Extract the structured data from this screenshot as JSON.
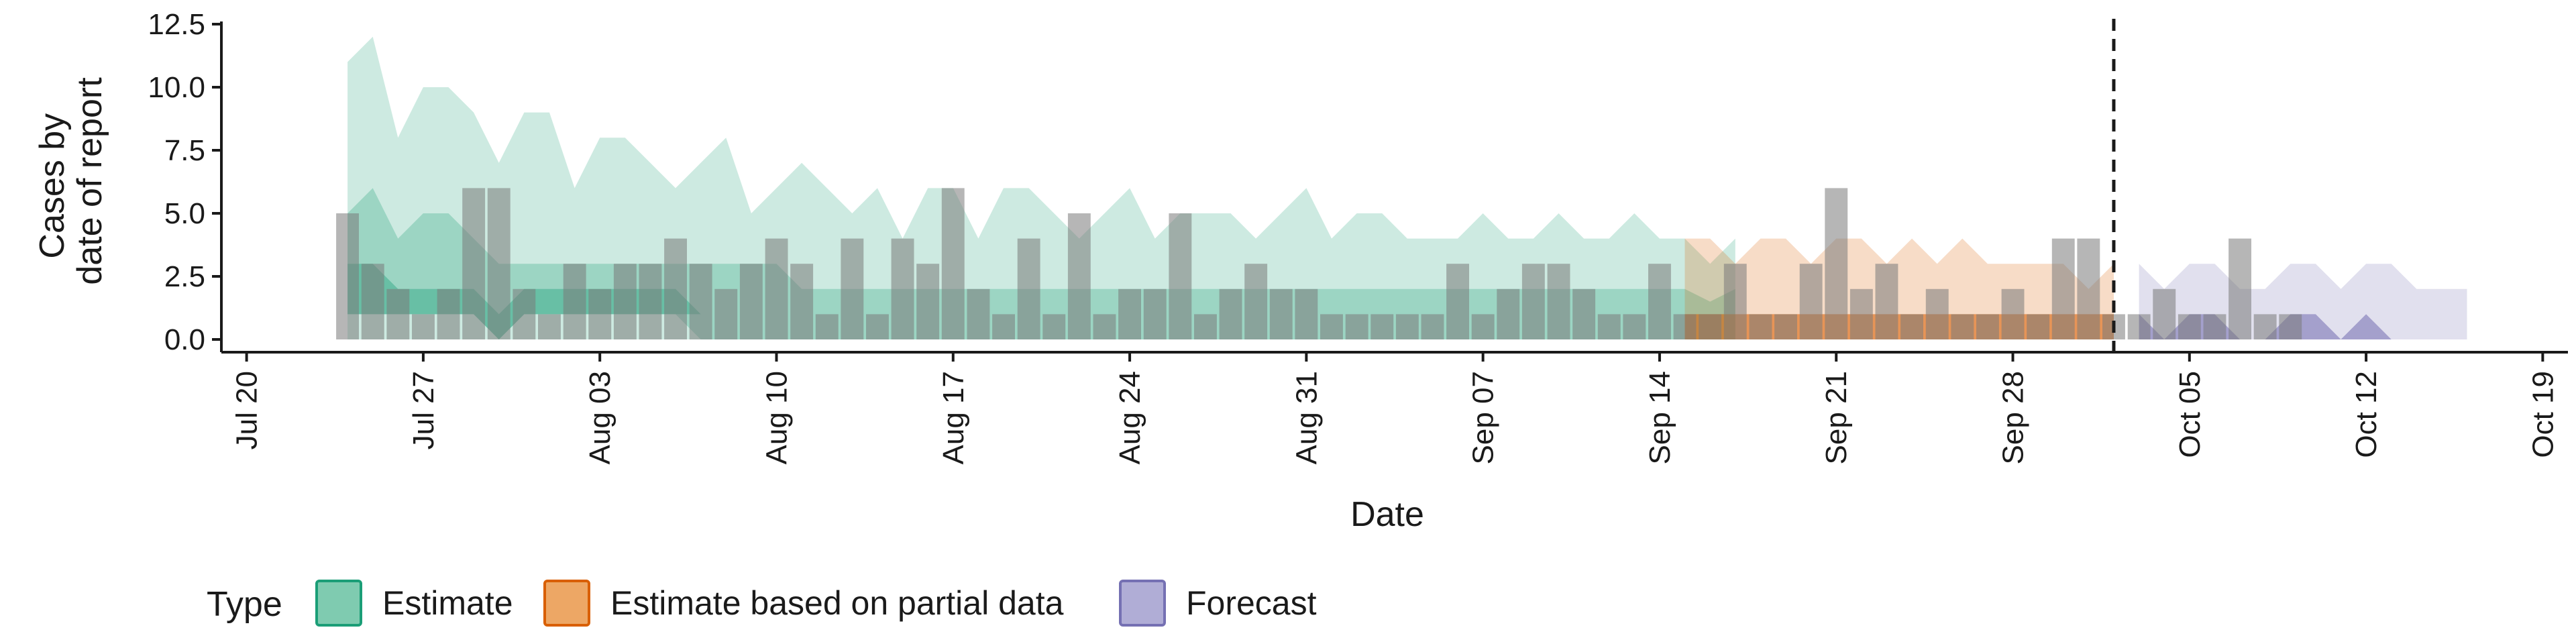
{
  "chart_data": {
    "type": "bar",
    "xlabel": "Date",
    "ylabel": "Cases by date of report",
    "ylabel_lines": [
      "Cases by",
      "date of report"
    ],
    "x_ticks": [
      "Jul 20",
      "Jul 27",
      "Aug 03",
      "Aug 10",
      "Aug 17",
      "Aug 24",
      "Aug 31",
      "Sep 07",
      "Sep 14",
      "Sep 21",
      "Sep 28",
      "Oct 05",
      "Oct 12",
      "Oct 19"
    ],
    "x_tick_dates": [
      "2020-07-20",
      "2020-07-27",
      "2020-08-03",
      "2020-08-10",
      "2020-08-17",
      "2020-08-24",
      "2020-08-31",
      "2020-09-07",
      "2020-09-14",
      "2020-09-21",
      "2020-09-28",
      "2020-10-05",
      "2020-10-12",
      "2020-10-19"
    ],
    "y_ticks": [
      "0.0",
      "2.5",
      "5.0",
      "7.5",
      "10.0",
      "12.5"
    ],
    "ylim": [
      0,
      12.5
    ],
    "xlim": [
      "2020-07-19",
      "2020-10-20"
    ],
    "forecast_line_date": "2020-10-02",
    "reported_cases": {
      "start_date": "2020-07-24",
      "values": [
        5,
        3,
        2,
        1,
        2,
        6,
        6,
        2,
        1,
        3,
        2,
        3,
        3,
        4,
        3,
        2,
        3,
        4,
        3,
        1,
        4,
        1,
        4,
        3,
        6,
        2,
        1,
        4,
        1,
        5,
        1,
        2,
        2,
        5,
        1,
        2,
        3,
        2,
        2,
        1,
        1,
        1,
        1,
        1,
        3,
        1,
        2,
        3,
        3,
        2,
        1,
        1,
        3,
        1,
        1,
        3,
        1,
        1,
        3,
        6,
        2,
        3,
        1,
        2,
        1,
        1,
        2,
        1,
        4,
        4,
        1,
        1,
        2,
        1,
        1,
        4,
        1,
        1
      ]
    },
    "bands": [
      {
        "name": "Estimate",
        "color": "#1b9e77",
        "start_date": "2020-07-24",
        "outer_upper": [
          11,
          12,
          8,
          10,
          10,
          9,
          7,
          9,
          9,
          6,
          8,
          8,
          7,
          6,
          7,
          8,
          5,
          6,
          7,
          6,
          5,
          6,
          4,
          6,
          6,
          4,
          6,
          6,
          5,
          4,
          5,
          6,
          4,
          5,
          5,
          5,
          4,
          5,
          6,
          4,
          5,
          5,
          4,
          4,
          4,
          5,
          4,
          4,
          5,
          4,
          4,
          5,
          4,
          4,
          3,
          4
        ],
        "outer_lower": [
          0,
          0,
          0,
          0,
          0,
          0,
          0,
          0,
          0,
          0,
          0,
          0,
          0,
          0,
          0,
          0,
          0,
          0,
          0,
          0,
          0,
          0,
          0,
          0,
          0,
          0,
          0,
          0,
          0,
          0,
          0,
          0,
          0,
          0,
          0,
          0,
          0,
          0,
          0,
          0,
          0,
          0,
          0,
          0,
          0,
          0,
          0,
          0,
          0,
          0,
          0,
          0,
          0,
          0,
          0,
          0
        ],
        "inner_upper": [
          5,
          6,
          4,
          5,
          5,
          4,
          3,
          3,
          3,
          3,
          3,
          3,
          3,
          3,
          3,
          3,
          3,
          3,
          2,
          2,
          2,
          2,
          2,
          2,
          2,
          2,
          2,
          2,
          2,
          2,
          2,
          2,
          2,
          2,
          2,
          2,
          2,
          2,
          2,
          2,
          2,
          2,
          2,
          2,
          2,
          2,
          2,
          2,
          2,
          2,
          2,
          2,
          2,
          2,
          1.5,
          2
        ],
        "inner_lower": [
          1,
          1,
          1,
          1,
          1,
          1,
          0,
          1,
          1,
          1,
          1,
          1,
          1,
          1,
          0,
          0,
          0,
          0,
          0,
          0,
          0,
          0,
          0,
          0,
          0,
          0,
          0,
          0,
          0,
          0,
          0,
          0,
          0,
          0,
          0,
          0,
          0,
          0,
          0,
          0,
          0,
          0,
          0,
          0,
          0,
          0,
          0,
          0,
          0,
          0,
          0,
          0,
          0,
          0,
          0,
          0
        ],
        "median_upper": [
          3,
          3,
          2,
          2,
          2,
          2,
          1,
          2,
          2,
          2,
          2,
          2,
          2,
          2,
          1,
          1,
          1,
          1,
          1,
          1,
          1,
          1,
          1,
          1,
          1,
          1,
          1,
          1,
          1,
          1,
          1,
          1,
          1,
          1,
          1,
          1,
          1,
          1,
          1,
          1,
          1,
          1,
          1,
          1,
          1,
          1,
          1,
          1,
          1,
          1,
          1,
          1,
          1,
          1,
          1,
          1
        ],
        "median_lower": [
          1,
          1,
          1,
          1,
          1,
          1,
          0,
          1,
          1,
          1,
          1,
          1,
          1,
          1,
          1,
          1,
          1,
          1,
          1,
          1,
          1,
          1,
          1,
          1,
          1,
          1,
          1,
          1,
          1,
          1,
          1,
          1,
          1,
          1,
          1,
          1,
          1,
          1,
          1,
          1,
          1,
          1,
          1,
          1,
          1,
          1,
          1,
          1,
          1,
          1,
          1,
          1,
          1,
          1,
          1,
          1
        ]
      },
      {
        "name": "Estimate based on partial data",
        "color": "#d95f02",
        "start_date": "2020-09-15",
        "outer_upper": [
          4,
          4,
          3,
          4,
          4,
          3,
          4,
          4,
          3,
          4,
          3,
          4,
          3,
          3,
          3,
          3,
          2,
          3
        ],
        "outer_lower": [
          0,
          0,
          0,
          0,
          0,
          0,
          0,
          0,
          0,
          0,
          0,
          0,
          0,
          0,
          0,
          0,
          0,
          0
        ],
        "inner_upper": [
          1,
          1,
          1,
          1,
          1,
          1,
          1,
          1,
          1,
          1,
          1,
          1,
          1,
          1,
          1,
          1,
          1,
          1
        ],
        "inner_lower": [
          0,
          0,
          0,
          0,
          0,
          0,
          0,
          0,
          0,
          0,
          0,
          0,
          0,
          0,
          0,
          0,
          0,
          0
        ],
        "median_upper": [
          1,
          1,
          1,
          1,
          1,
          1,
          1,
          1,
          1,
          1,
          1,
          1,
          1,
          1,
          1,
          1,
          1,
          1
        ],
        "median_lower": [
          0,
          0,
          0,
          0,
          0,
          0,
          0,
          0,
          0,
          0,
          0,
          0,
          0,
          0,
          0,
          0,
          0,
          0
        ]
      },
      {
        "name": "Forecast",
        "color": "#7570b3",
        "start_date": "2020-10-03",
        "outer_upper": [
          3,
          2,
          3,
          3,
          2,
          2,
          3,
          3,
          2,
          3,
          3,
          2,
          2,
          2
        ],
        "outer_lower": [
          0,
          0,
          0,
          0,
          0,
          0,
          0,
          0,
          0,
          0,
          0,
          0,
          0,
          0
        ],
        "inner_upper": [
          1,
          0,
          1,
          1,
          0,
          0,
          1,
          1,
          0,
          1,
          0,
          0,
          0,
          0
        ],
        "inner_lower": [
          0,
          0,
          0,
          0,
          0,
          0,
          0,
          0,
          0,
          0,
          0,
          0,
          0,
          0
        ],
        "median_upper": [
          1,
          0,
          1,
          1,
          0,
          0,
          1,
          1,
          0,
          1,
          0,
          0,
          0,
          0
        ],
        "median_lower": [
          0,
          0,
          0,
          0,
          0,
          0,
          0,
          0,
          0,
          0,
          0,
          0,
          0,
          0
        ]
      }
    ],
    "legend": {
      "title": "Type",
      "position": "bottom",
      "items": [
        {
          "label": "Estimate",
          "fill": "#7fcbb0",
          "stroke": "#1b9e77"
        },
        {
          "label": "Estimate based on partial data",
          "fill": "#eda765",
          "stroke": "#d95f02"
        },
        {
          "label": "Forecast",
          "fill": "#b0add6",
          "stroke": "#7570b3"
        }
      ]
    },
    "grid": false
  }
}
